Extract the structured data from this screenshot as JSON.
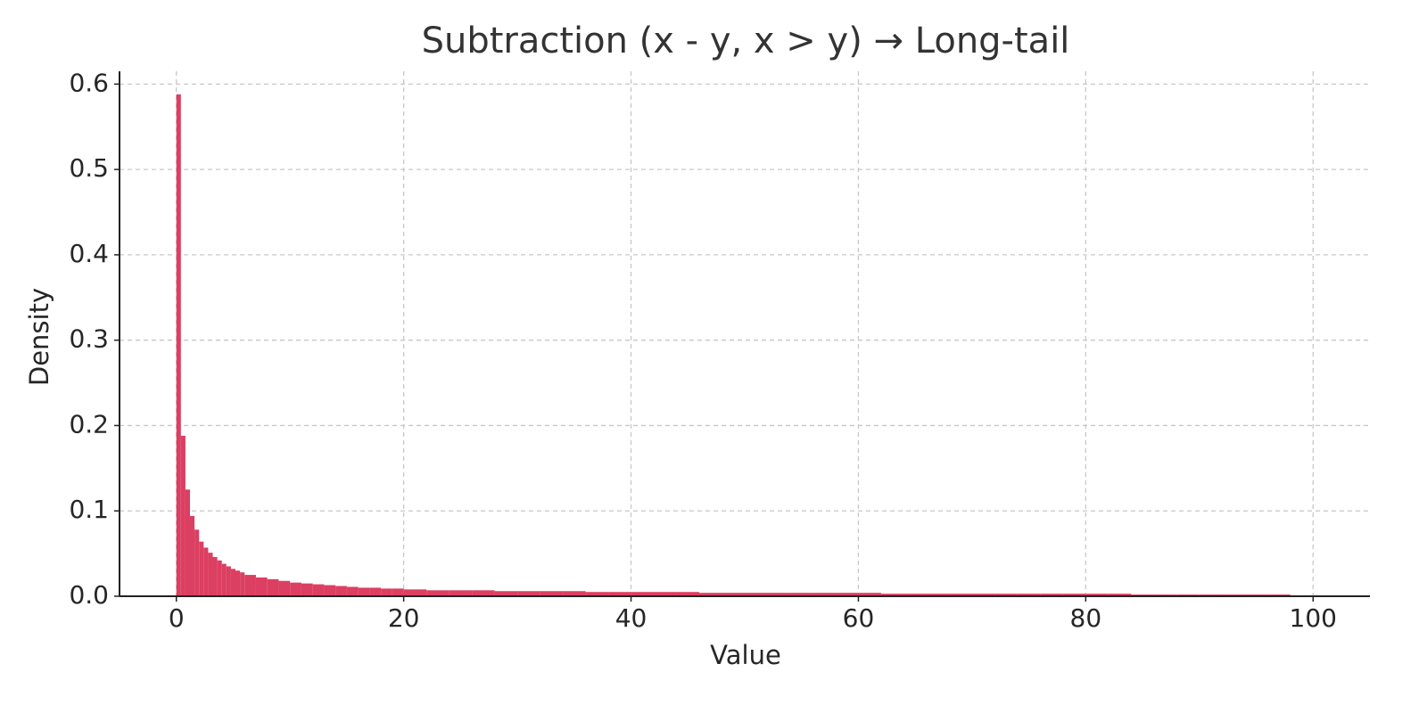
{
  "chart_data": {
    "type": "histogram",
    "title": "Subtraction (x - y, x > y) → Long-tail",
    "x_label": "Value",
    "y_label": "Density",
    "color": "#dc3f61",
    "grid": true,
    "bins": [
      0,
      0.4,
      0.8,
      1.2,
      1.6,
      2.0,
      2.4,
      2.8,
      3.2,
      3.6,
      4.0,
      4.4,
      4.8,
      5.2,
      5.6,
      6,
      7,
      8,
      9,
      10,
      11,
      12,
      13,
      14,
      15,
      16,
      17,
      18,
      19,
      20,
      22,
      24,
      26,
      28,
      30,
      32,
      34,
      36,
      38,
      40,
      42,
      44,
      46,
      48,
      50,
      52,
      54,
      56,
      58,
      60,
      62,
      64,
      66,
      68,
      70,
      72,
      74,
      76,
      78,
      80,
      82,
      84,
      86,
      88,
      90,
      92,
      94,
      96,
      98
    ],
    "values": [
      0.588,
      0.188,
      0.125,
      0.094,
      0.078,
      0.064,
      0.057,
      0.051,
      0.046,
      0.042,
      0.038,
      0.035,
      0.032,
      0.03,
      0.028,
      0.025,
      0.022,
      0.02,
      0.018,
      0.016,
      0.015,
      0.014,
      0.013,
      0.012,
      0.011,
      0.01,
      0.01,
      0.009,
      0.009,
      0.008,
      0.007,
      0.007,
      0.007,
      0.006,
      0.006,
      0.006,
      0.006,
      0.005,
      0.005,
      0.005,
      0.005,
      0.005,
      0.004,
      0.004,
      0.004,
      0.004,
      0.004,
      0.004,
      0.004,
      0.004,
      0.003,
      0.003,
      0.003,
      0.003,
      0.003,
      0.003,
      0.003,
      0.003,
      0.003,
      0.003,
      0.003,
      0.002,
      0.002,
      0.002,
      0.002,
      0.002,
      0.002,
      0.002
    ],
    "xlim": [
      -5,
      105
    ],
    "ylim": [
      0,
      0.615
    ],
    "xticks": [
      0,
      20,
      40,
      60,
      80,
      100
    ],
    "yticks": [
      {
        "value": 0,
        "label": "0.0"
      },
      0.1,
      0.2,
      0.3,
      0.4,
      0.5,
      0.6
    ]
  }
}
